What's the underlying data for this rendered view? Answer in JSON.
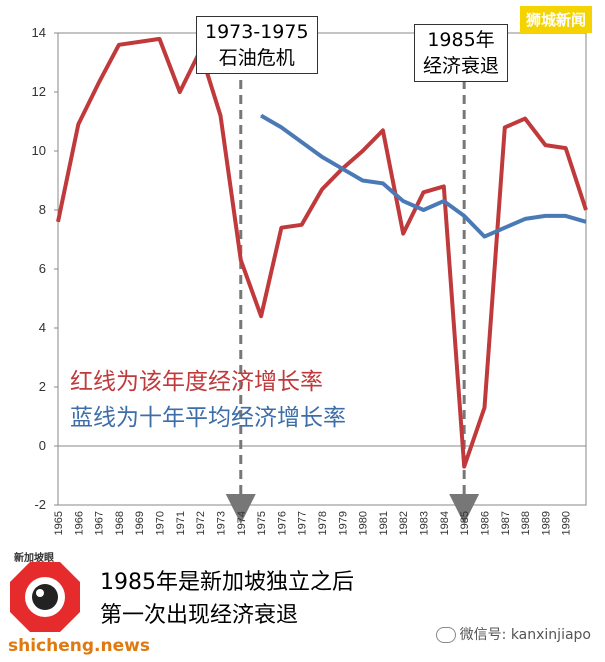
{
  "chart_data": {
    "type": "line",
    "title": "",
    "xlabel": "",
    "ylabel": "",
    "ylim": [
      -2,
      14
    ],
    "yticks": [
      -2,
      0,
      2,
      4,
      6,
      8,
      10,
      12,
      14
    ],
    "xlim": [
      1965,
      1991
    ],
    "xtick_labels": [
      "1965",
      "1966",
      "1967",
      "1968",
      "1969",
      "1970",
      "1971",
      "1972",
      "1973",
      "1974",
      "1975",
      "1976",
      "1977",
      "1978",
      "1979",
      "1980",
      "1981",
      "1982",
      "1983",
      "1984",
      "1985",
      "1986",
      "1987",
      "1988",
      "1989",
      "1990"
    ],
    "grid": false,
    "series": [
      {
        "name": "红线为该年度经济增长率",
        "color": "#c0393b",
        "x": [
          1965,
          1966,
          1967,
          1968,
          1969,
          1970,
          1971,
          1972,
          1973,
          1974,
          1975,
          1976,
          1977,
          1978,
          1979,
          1980,
          1981,
          1982,
          1983,
          1984,
          1985,
          1986,
          1987,
          1988,
          1989,
          1990,
          1991
        ],
        "y": [
          7.6,
          10.9,
          12.3,
          13.6,
          13.7,
          13.8,
          12.0,
          13.4,
          11.2,
          6.3,
          4.4,
          7.4,
          7.5,
          8.7,
          9.4,
          10.0,
          10.7,
          7.2,
          8.6,
          8.8,
          -0.7,
          1.3,
          10.8,
          11.1,
          10.2,
          10.1,
          8.0
        ]
      },
      {
        "name": "蓝线为十年平均经济增长率",
        "color": "#4a7ab5",
        "x": [
          1975,
          1976,
          1977,
          1978,
          1979,
          1980,
          1981,
          1982,
          1983,
          1984,
          1985,
          1986,
          1987,
          1988,
          1989,
          1990,
          1991
        ],
        "y": [
          11.2,
          10.8,
          10.3,
          9.8,
          9.4,
          9.0,
          8.9,
          8.3,
          8.0,
          8.3,
          7.8,
          7.1,
          7.4,
          7.7,
          7.8,
          7.8,
          7.6
        ]
      }
    ],
    "annotations": [
      {
        "id": "oil",
        "lines": [
          "1973-1975",
          "石油危机"
        ],
        "x": 1974
      },
      {
        "id": "recession",
        "lines": [
          "1985年",
          "经济衰退"
        ],
        "x": 1985
      }
    ]
  },
  "legend": {
    "red_text": "红线为该年度经济增长率",
    "blue_text": "蓝线为十年平均经济增长率"
  },
  "watermark_badge": "狮城新闻",
  "caption": {
    "line1": "1985年是新加坡独立之后",
    "line2": "第一次出现经济衰退"
  },
  "logo_text": "新加坡眼",
  "site_name": "shicheng.news",
  "wechat_text": "微信号: kanxinjiapo"
}
